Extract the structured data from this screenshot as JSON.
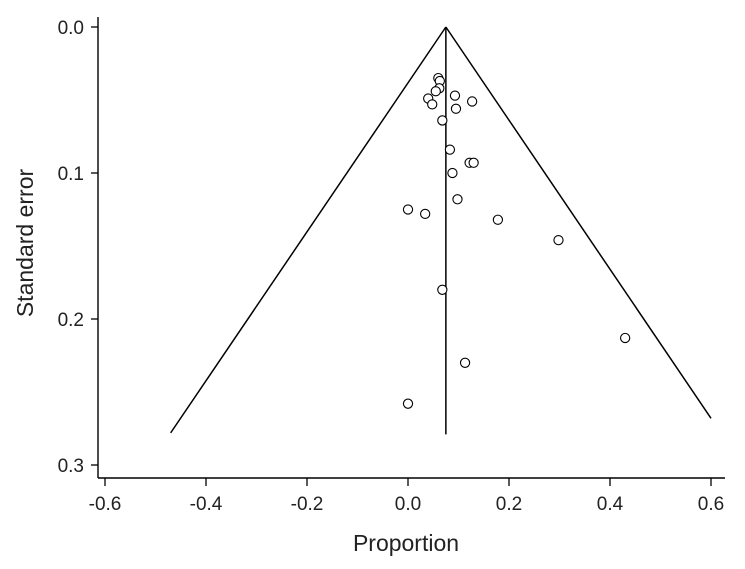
{
  "chart_data": {
    "type": "scatter",
    "title": "",
    "xlabel": "Proportion",
    "ylabel": "Standard error",
    "xlim": [
      -0.6,
      0.6
    ],
    "ylim": [
      0.0,
      0.3
    ],
    "y_inverted": true,
    "xticks": [
      -0.6,
      -0.4,
      -0.2,
      0.0,
      0.2,
      0.4,
      0.6
    ],
    "xtick_labels": [
      "-0.6",
      "-0.4",
      "-0.2",
      "0.0",
      "0.2",
      "0.4",
      "0.6"
    ],
    "yticks": [
      0.0,
      0.1,
      0.2,
      0.3
    ],
    "ytick_labels": [
      "0.0",
      "0.1",
      "0.2",
      "0.3"
    ],
    "grid": false,
    "pooled_estimate": 0.075,
    "funnel": {
      "apex": [
        0.075,
        0.0
      ],
      "left_end": [
        -0.47,
        0.278
      ],
      "right_end": [
        0.6,
        0.268
      ]
    },
    "estimate_line": {
      "x": 0.075,
      "y_from": 0.0,
      "y_to": 0.279
    },
    "points": [
      {
        "x": 0.06,
        "y": 0.035
      },
      {
        "x": 0.063,
        "y": 0.037
      },
      {
        "x": 0.062,
        "y": 0.042
      },
      {
        "x": 0.055,
        "y": 0.044
      },
      {
        "x": 0.04,
        "y": 0.049
      },
      {
        "x": 0.093,
        "y": 0.047
      },
      {
        "x": 0.127,
        "y": 0.051
      },
      {
        "x": 0.048,
        "y": 0.053
      },
      {
        "x": 0.095,
        "y": 0.056
      },
      {
        "x": 0.068,
        "y": 0.064
      },
      {
        "x": 0.083,
        "y": 0.084
      },
      {
        "x": 0.122,
        "y": 0.093
      },
      {
        "x": 0.13,
        "y": 0.093
      },
      {
        "x": 0.088,
        "y": 0.1
      },
      {
        "x": 0.098,
        "y": 0.118
      },
      {
        "x": 0.0,
        "y": 0.125
      },
      {
        "x": 0.034,
        "y": 0.128
      },
      {
        "x": 0.178,
        "y": 0.132
      },
      {
        "x": 0.298,
        "y": 0.146
      },
      {
        "x": 0.068,
        "y": 0.18
      },
      {
        "x": 0.43,
        "y": 0.213
      },
      {
        "x": 0.113,
        "y": 0.23
      },
      {
        "x": 0.0,
        "y": 0.258
      }
    ]
  }
}
